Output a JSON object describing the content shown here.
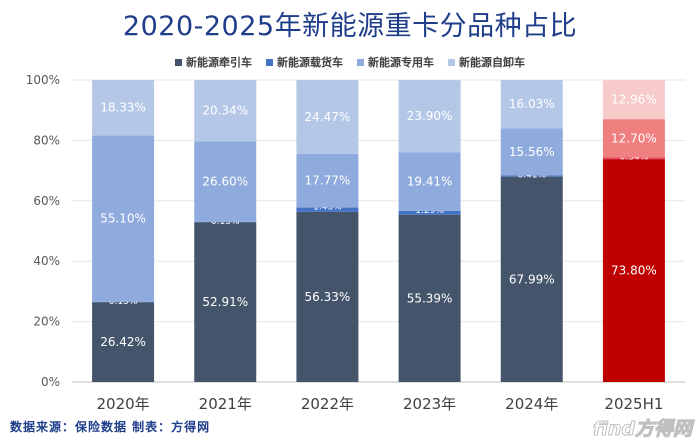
{
  "title": "2020-2025年新能源重卡分品种占比",
  "footer": "数据来源：保险数据  制表：方得网",
  "logo_text": "find方得网",
  "chart_data": {
    "type": "bar",
    "stacked": true,
    "categories": [
      "2020年",
      "2021年",
      "2022年",
      "2023年",
      "2024年",
      "2025H1"
    ],
    "ylim": [
      0,
      100
    ],
    "yticks": [
      "0%",
      "20%",
      "40%",
      "60%",
      "80%",
      "100%"
    ],
    "legend_position": "top",
    "series": [
      {
        "name": "新能源牵引车",
        "color": "#44546a",
        "values": [
          26.42,
          52.91,
          56.33,
          55.39,
          67.99,
          73.8
        ],
        "labels": [
          "26.42%",
          "52.91%",
          "56.33%",
          "55.39%",
          "67.99%",
          "73.80%"
        ]
      },
      {
        "name": "新能源载货车",
        "color": "#4472c4",
        "values": [
          0.15,
          0.15,
          1.43,
          1.29,
          0.41,
          0.54
        ],
        "labels": [
          "0.15%",
          "0.15%",
          "1.43%",
          "1.29%",
          "0.41%",
          "0.54%"
        ]
      },
      {
        "name": "新能源专用车",
        "color": "#8faadc",
        "values": [
          55.1,
          26.6,
          17.77,
          19.41,
          15.56,
          12.7
        ],
        "labels": [
          "55.10%",
          "26.60%",
          "17.77%",
          "19.41%",
          "15.56%",
          "12.70%"
        ]
      },
      {
        "name": "新能源自卸车",
        "color": "#b4c7e7",
        "values": [
          18.33,
          20.34,
          24.47,
          23.9,
          16.03,
          12.96
        ],
        "labels": [
          "18.33%",
          "20.34%",
          "24.47%",
          "23.90%",
          "16.03%",
          "12.96%"
        ]
      }
    ],
    "highlight": {
      "category_index": 5,
      "colors": [
        "#c00000",
        "#e84a5f",
        "#f08080",
        "#f8cbcb"
      ]
    }
  }
}
